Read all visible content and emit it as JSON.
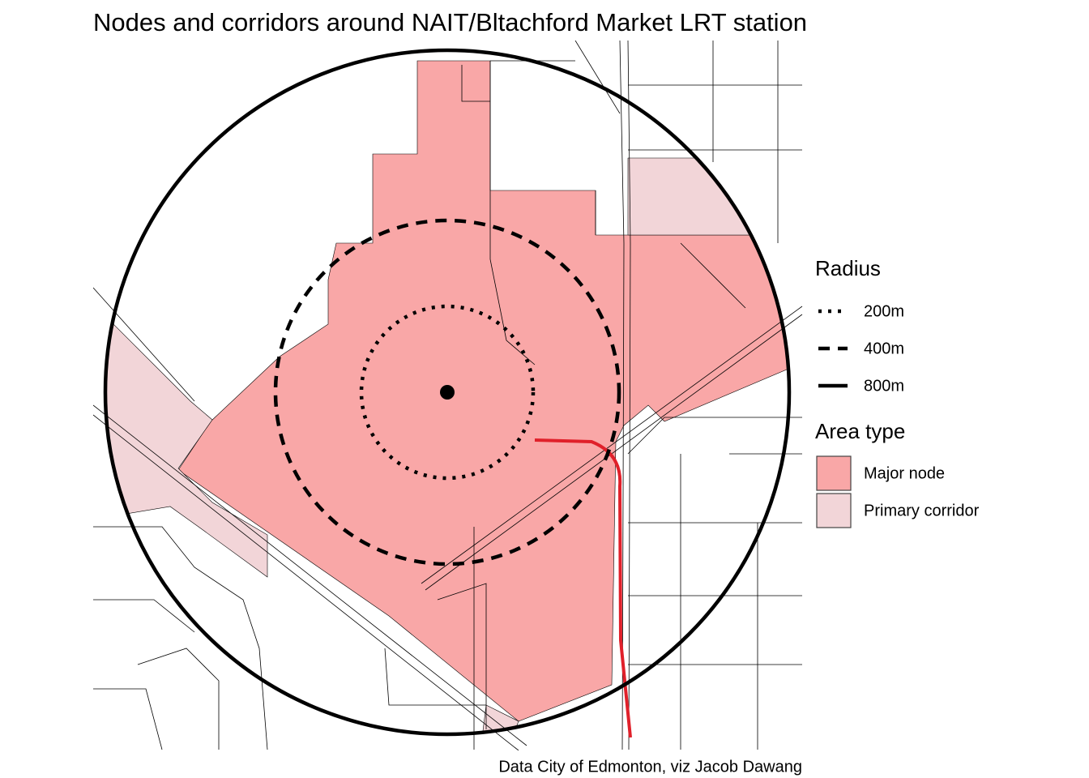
{
  "title": "Nodes and corridors around NAIT/Bltachford Market LRT station",
  "legend": {
    "radius": {
      "title": "Radius",
      "items": [
        "200m",
        "400m",
        "800m"
      ]
    },
    "area_type": {
      "title": "Area type",
      "items": [
        "Major node",
        "Primary corridor"
      ]
    }
  },
  "caption": "Data City of Edmonton, viz Jacob Dawang"
}
